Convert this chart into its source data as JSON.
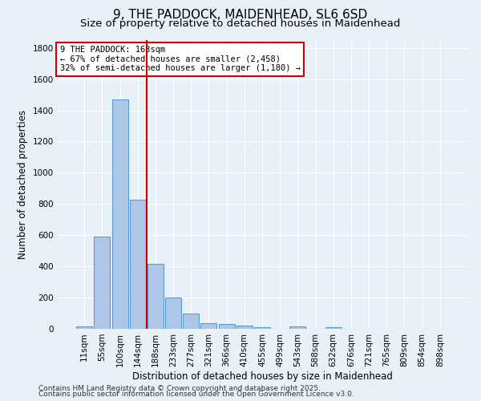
{
  "title": "9, THE PADDOCK, MAIDENHEAD, SL6 6SD",
  "subtitle": "Size of property relative to detached houses in Maidenhead",
  "xlabel": "Distribution of detached houses by size in Maidenhead",
  "ylabel": "Number of detached properties",
  "categories": [
    "11sqm",
    "55sqm",
    "100sqm",
    "144sqm",
    "188sqm",
    "233sqm",
    "277sqm",
    "321sqm",
    "366sqm",
    "410sqm",
    "455sqm",
    "499sqm",
    "543sqm",
    "588sqm",
    "632sqm",
    "676sqm",
    "721sqm",
    "765sqm",
    "809sqm",
    "854sqm",
    "898sqm"
  ],
  "values": [
    15,
    590,
    1470,
    825,
    415,
    200,
    100,
    35,
    30,
    20,
    10,
    0,
    15,
    0,
    10,
    0,
    0,
    0,
    0,
    0,
    0
  ],
  "bar_color": "#aec6e8",
  "bar_edge_color": "#5b9bd5",
  "bar_edge_width": 0.8,
  "vline_x_index": 3.5,
  "vline_color": "#cc0000",
  "annotation_text": "9 THE PADDOCK: 163sqm\n← 67% of detached houses are smaller (2,458)\n32% of semi-detached houses are larger (1,180) →",
  "annotation_box_color": "#ffffff",
  "annotation_box_edge": "#cc0000",
  "ylim": [
    0,
    1850
  ],
  "yticks": [
    0,
    200,
    400,
    600,
    800,
    1000,
    1200,
    1400,
    1600,
    1800
  ],
  "footer1": "Contains HM Land Registry data © Crown copyright and database right 2025.",
  "footer2": "Contains public sector information licensed under the Open Government Licence v3.0.",
  "background_color": "#e8f0f8",
  "grid_color": "#ffffff",
  "title_fontsize": 11,
  "subtitle_fontsize": 9.5,
  "axis_label_fontsize": 8.5,
  "tick_fontsize": 7.5,
  "annotation_fontsize": 7.5,
  "footer_fontsize": 6.5
}
